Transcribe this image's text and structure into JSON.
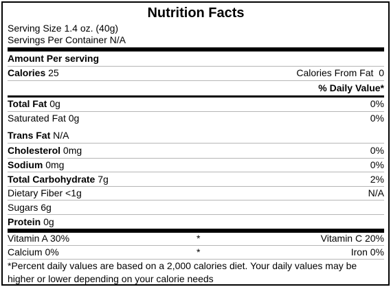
{
  "title": "Nutrition Facts",
  "serving_size": "Serving Size 1.4 oz. (40g)",
  "servings_per_container": "Servings Per Container N/A",
  "amount_per_serving": "Amount Per serving",
  "calories": {
    "label": "Calories",
    "value": "25"
  },
  "calories_from_fat": {
    "label": "Calories From Fat",
    "value": "0"
  },
  "daily_value_header": "% Daily Value*",
  "nutrients": [
    {
      "label": "Total Fat",
      "value": "0g",
      "dv": "0%"
    },
    {
      "label": "Saturated Fat",
      "value": "0g",
      "dv": "0%"
    },
    {
      "label": "Trans Fat",
      "value": "N/A",
      "dv": ""
    },
    {
      "label": "Cholesterol",
      "value": "0mg",
      "dv": "0%"
    },
    {
      "label": "Sodium",
      "value": "0mg",
      "dv": "0%"
    },
    {
      "label": "Total Carbohydrate",
      "value": "7g",
      "dv": "2%"
    },
    {
      "label": "Dietary Fiber",
      "value": "<1g",
      "dv": "N/A"
    },
    {
      "label": "Sugars",
      "value": "6g",
      "dv": ""
    },
    {
      "label": "Protein",
      "value": "0g",
      "dv": ""
    }
  ],
  "vitamins": [
    {
      "left": "Vitamin A 30%",
      "star": "*",
      "right": "Vitamin C 20%"
    },
    {
      "left": "Calcium 0%",
      "star": "*",
      "right": "Iron 0%"
    }
  ],
  "footnote": "*Percent daily values are based on a 2,000 calories diet. Your daily values may be higher or lower depending on your calorie needs"
}
